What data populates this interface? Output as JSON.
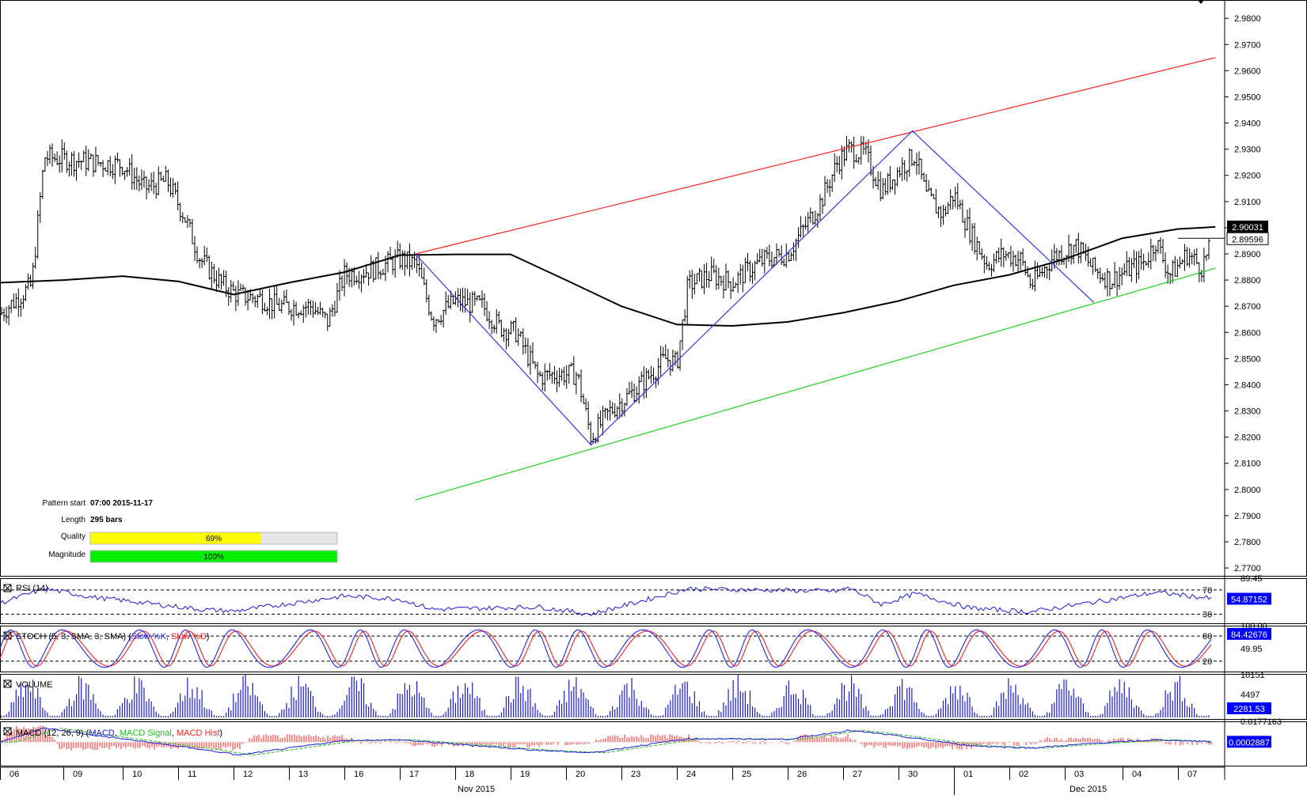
{
  "chart_data": [
    {
      "type": "ohlc",
      "panel": "price",
      "y_axis_ticks": [
        "2.9800",
        "2.9700",
        "2.9600",
        "2.9500",
        "2.9400",
        "2.9300",
        "2.9200",
        "2.9100",
        "2.9000",
        "2.8900",
        "2.8800",
        "2.8700",
        "2.8600",
        "2.8500",
        "2.8400",
        "2.8300",
        "2.8200",
        "2.8100",
        "2.8000",
        "2.7900",
        "2.7800",
        "2.7700"
      ],
      "ylim": [
        2.767,
        2.987
      ],
      "x_day_labels": [
        "06",
        "09",
        "10",
        "11",
        "12",
        "13",
        "16",
        "17",
        "18",
        "19",
        "20",
        "23",
        "24",
        "25",
        "26",
        "27",
        "30",
        "01",
        "02",
        "03",
        "04",
        "07"
      ],
      "x_month_labels": [
        "Nov 2015",
        "Dec 2015"
      ],
      "price_labels": {
        "moving_average": "2.90031",
        "last_close": "2.89596"
      },
      "close_path": [
        {
          "day": 0.0,
          "close": 2.867
        },
        {
          "day": 0.5,
          "close": 2.878
        },
        {
          "day": 0.7,
          "close": 2.927
        },
        {
          "day": 1.5,
          "close": 2.925
        },
        {
          "day": 2.0,
          "close": 2.924
        },
        {
          "day": 2.4,
          "close": 2.915
        },
        {
          "day": 2.8,
          "close": 2.918
        },
        {
          "day": 3.1,
          "close": 2.905
        },
        {
          "day": 3.4,
          "close": 2.888
        },
        {
          "day": 3.8,
          "close": 2.878
        },
        {
          "day": 4.1,
          "close": 2.874
        },
        {
          "day": 4.5,
          "close": 2.873
        },
        {
          "day": 4.8,
          "close": 2.87
        },
        {
          "day": 5.4,
          "close": 2.87
        },
        {
          "day": 5.7,
          "close": 2.864
        },
        {
          "day": 6.0,
          "close": 2.882
        },
        {
          "day": 6.5,
          "close": 2.884
        },
        {
          "day": 7.0,
          "close": 2.888
        },
        {
          "day": 7.3,
          "close": 2.886
        },
        {
          "day": 7.6,
          "close": 2.865
        },
        {
          "day": 8.0,
          "close": 2.872
        },
        {
          "day": 8.5,
          "close": 2.87
        },
        {
          "day": 8.8,
          "close": 2.862
        },
        {
          "day": 9.1,
          "close": 2.86
        },
        {
          "day": 9.5,
          "close": 2.843
        },
        {
          "day": 9.8,
          "close": 2.844
        },
        {
          "day": 10.2,
          "close": 2.844
        },
        {
          "day": 10.45,
          "close": 2.82
        },
        {
          "day": 10.8,
          "close": 2.83
        },
        {
          "day": 11.3,
          "close": 2.839
        },
        {
          "day": 11.8,
          "close": 2.85
        },
        {
          "day": 12.0,
          "close": 2.848
        },
        {
          "day": 12.2,
          "close": 2.878
        },
        {
          "day": 12.6,
          "close": 2.882
        },
        {
          "day": 13.0,
          "close": 2.879
        },
        {
          "day": 13.3,
          "close": 2.884
        },
        {
          "day": 13.6,
          "close": 2.888
        },
        {
          "day": 14.0,
          "close": 2.89
        },
        {
          "day": 14.3,
          "close": 2.9
        },
        {
          "day": 14.6,
          "close": 2.91
        },
        {
          "day": 14.9,
          "close": 2.925
        },
        {
          "day": 15.1,
          "close": 2.93
        },
        {
          "day": 15.4,
          "close": 2.928
        },
        {
          "day": 15.7,
          "close": 2.914
        },
        {
          "day": 16.0,
          "close": 2.922
        },
        {
          "day": 16.3,
          "close": 2.928
        },
        {
          "day": 16.5,
          "close": 2.912
        },
        {
          "day": 16.8,
          "close": 2.905
        },
        {
          "day": 17.0,
          "close": 2.913
        },
        {
          "day": 17.3,
          "close": 2.898
        },
        {
          "day": 17.6,
          "close": 2.886
        },
        {
          "day": 17.9,
          "close": 2.89
        },
        {
          "day": 18.2,
          "close": 2.888
        },
        {
          "day": 18.4,
          "close": 2.878
        },
        {
          "day": 18.8,
          "close": 2.889
        },
        {
          "day": 19.2,
          "close": 2.893
        },
        {
          "day": 19.5,
          "close": 2.884
        },
        {
          "day": 19.8,
          "close": 2.88
        },
        {
          "day": 20.1,
          "close": 2.884
        },
        {
          "day": 20.4,
          "close": 2.887
        },
        {
          "day": 20.6,
          "close": 2.895
        },
        {
          "day": 20.85,
          "close": 2.882
        },
        {
          "day": 21.2,
          "close": 2.89
        },
        {
          "day": 21.5,
          "close": 2.885
        },
        {
          "day": 21.8,
          "close": 2.896
        }
      ],
      "moving_average": [
        {
          "day": 0.0,
          "value": 2.879
        },
        {
          "day": 1.0,
          "value": 2.88
        },
        {
          "day": 2.0,
          "value": 2.8815
        },
        {
          "day": 3.0,
          "value": 2.8795
        },
        {
          "day": 4.0,
          "value": 2.8745
        },
        {
          "day": 5.0,
          "value": 2.879
        },
        {
          "day": 6.0,
          "value": 2.883
        },
        {
          "day": 7.0,
          "value": 2.8895
        },
        {
          "day": 8.0,
          "value": 2.8898
        },
        {
          "day": 9.0,
          "value": 2.8898
        },
        {
          "day": 10.0,
          "value": 2.88
        },
        {
          "day": 11.0,
          "value": 2.87
        },
        {
          "day": 12.0,
          "value": 2.863
        },
        {
          "day": 13.0,
          "value": 2.8625
        },
        {
          "day": 14.0,
          "value": 2.864
        },
        {
          "day": 15.0,
          "value": 2.8675
        },
        {
          "day": 16.0,
          "value": 2.872
        },
        {
          "day": 17.0,
          "value": 2.878
        },
        {
          "day": 18.0,
          "value": 2.882
        },
        {
          "day": 19.0,
          "value": 2.888
        },
        {
          "day": 20.0,
          "value": 2.896
        },
        {
          "day": 21.0,
          "value": 2.8995
        },
        {
          "day": 21.8,
          "value": 2.9003
        }
      ],
      "channel_upper": {
        "from": {
          "day": 7.28,
          "price": 2.89
        },
        "to": {
          "day": 21.8,
          "price": 2.965
        }
      },
      "channel_lower": {
        "from": {
          "day": 7.28,
          "price": 2.796
        },
        "to": {
          "day": 21.8,
          "price": 2.8845
        }
      },
      "pattern_zigzag": [
        {
          "day": 7.28,
          "price": 2.89
        },
        {
          "day": 10.45,
          "price": 2.817
        },
        {
          "day": 16.25,
          "price": 2.937
        },
        {
          "day": 19.5,
          "price": 2.8715
        }
      ]
    },
    {
      "type": "line",
      "panel": "rsi",
      "legend": "RSI (14)",
      "levels": [
        "70",
        "30"
      ],
      "ylim": [
        15,
        89.45
      ],
      "top_label": "89.45",
      "value_label": "54.87152",
      "path": [
        {
          "day": 0.0,
          "value": 48
        },
        {
          "day": 0.7,
          "value": 72
        },
        {
          "day": 1.5,
          "value": 58
        },
        {
          "day": 3.4,
          "value": 38
        },
        {
          "day": 4.0,
          "value": 35
        },
        {
          "day": 6.0,
          "value": 60
        },
        {
          "day": 7.0,
          "value": 55
        },
        {
          "day": 7.6,
          "value": 38
        },
        {
          "day": 9.5,
          "value": 42
        },
        {
          "day": 10.45,
          "value": 30
        },
        {
          "day": 12.2,
          "value": 72
        },
        {
          "day": 14.9,
          "value": 68
        },
        {
          "day": 15.1,
          "value": 74
        },
        {
          "day": 15.7,
          "value": 46
        },
        {
          "day": 16.3,
          "value": 64
        },
        {
          "day": 17.3,
          "value": 40
        },
        {
          "day": 18.4,
          "value": 34
        },
        {
          "day": 19.5,
          "value": 50
        },
        {
          "day": 20.6,
          "value": 66
        },
        {
          "day": 21.8,
          "value": 55
        }
      ]
    },
    {
      "type": "line",
      "panel": "stoch",
      "legend": "STOCH (5, 3, SMA, 3, SMA)",
      "series": [
        {
          "name": "Slow %K"
        },
        {
          "name": "Slow %D"
        }
      ],
      "levels": [
        "80",
        "20"
      ],
      "ylim": [
        -5,
        105
      ],
      "mid_label": "49.95",
      "top_label": "100.00",
      "value_label": "84.42676"
    },
    {
      "type": "bar",
      "panel": "volume",
      "legend": "VOLUME",
      "tick_labels": [
        "10151",
        "4497"
      ],
      "value_label": "2281.53"
    },
    {
      "type": "line",
      "panel": "macd",
      "legend": "MACD (12, 26, 9)",
      "series": [
        {
          "name": "MACD"
        },
        {
          "name": "MACD Signal"
        },
        {
          "name": "MACD Hist"
        }
      ],
      "top_label": "0.0177163",
      "value_label": "0.0002887",
      "ylim": [
        -0.02,
        0.0177163
      ],
      "path": [
        {
          "day": 0.0,
          "value": 0.0
        },
        {
          "day": 0.7,
          "value": 0.012
        },
        {
          "day": 1.5,
          "value": 0.006
        },
        {
          "day": 3.4,
          "value": -0.006
        },
        {
          "day": 4.1,
          "value": -0.011
        },
        {
          "day": 6.0,
          "value": 0.0015
        },
        {
          "day": 7.0,
          "value": 0.002
        },
        {
          "day": 9.5,
          "value": -0.007
        },
        {
          "day": 10.45,
          "value": -0.009
        },
        {
          "day": 12.2,
          "value": 0.003
        },
        {
          "day": 14.0,
          "value": 0.0025
        },
        {
          "day": 15.1,
          "value": 0.01
        },
        {
          "day": 15.7,
          "value": 0.007
        },
        {
          "day": 17.3,
          "value": -0.003
        },
        {
          "day": 18.4,
          "value": -0.005
        },
        {
          "day": 19.5,
          "value": -0.001
        },
        {
          "day": 20.6,
          "value": 0.002
        },
        {
          "day": 21.8,
          "value": 0.0003
        }
      ]
    }
  ],
  "pattern_info": {
    "start_label": "Pattern start",
    "start_value": "07:00 2015-11-17",
    "length_label": "Length",
    "length_value": "295 bars",
    "quality_label": "Quality",
    "quality_text": "69%",
    "quality_fraction": 0.69,
    "magnitude_label": "Magnitude",
    "magnitude_text": "100%",
    "magnitude_fraction": 1.0
  },
  "colors": {
    "price_bar": "#000000",
    "moving_average": "#000000",
    "channel_upper": "#ff2020",
    "channel_lower": "#20d020",
    "zigzag": "#3333ff",
    "rsi": "#1a1ad6",
    "stoch_k": "#2222ff",
    "stoch_d": "#ff2020",
    "volume": "#1a1ad6",
    "macd": "#1a1ad6",
    "macd_signal": "#20c020",
    "macd_hist": "#ff2020",
    "quality_fill": "#ffff00",
    "magnitude_fill": "#00ee00",
    "label_box": "#0000ff"
  }
}
